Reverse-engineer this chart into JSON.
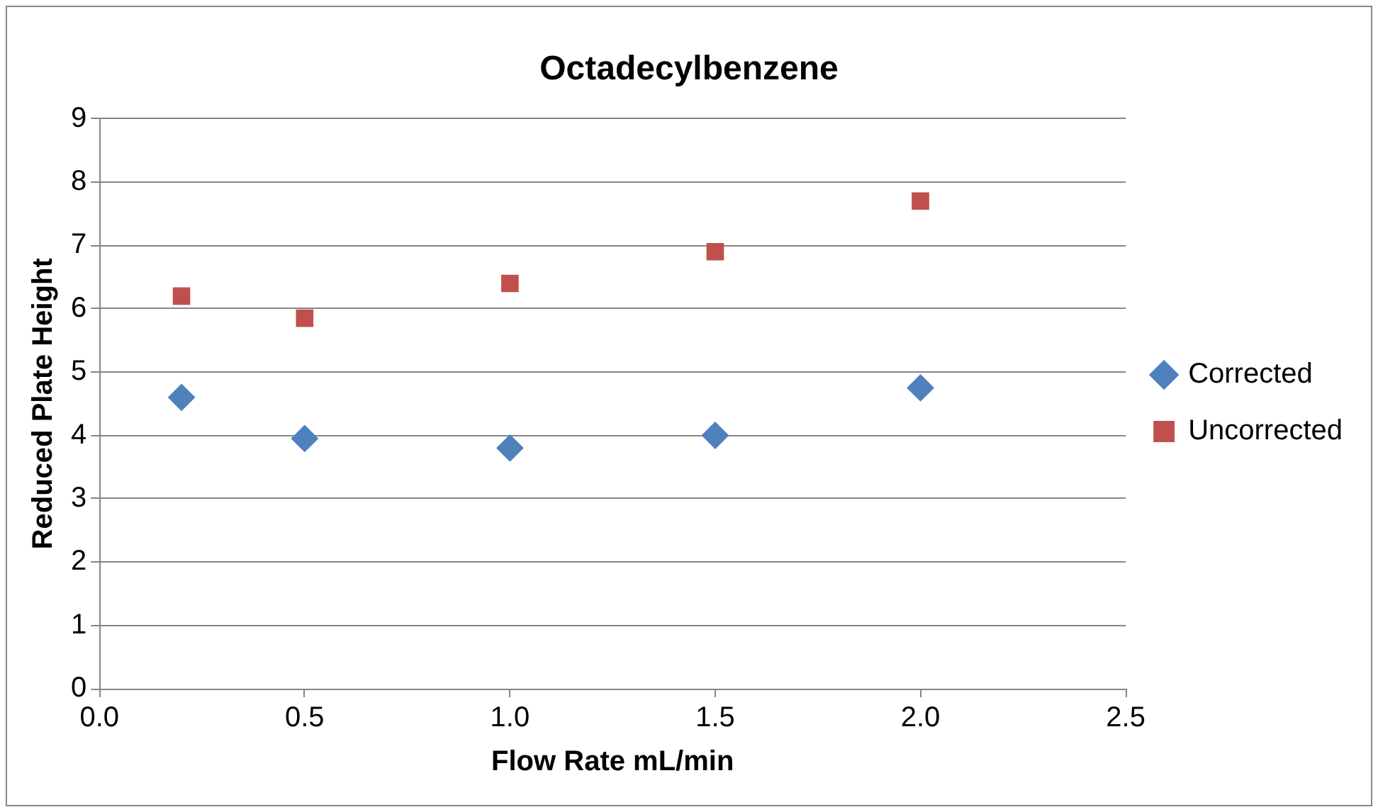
{
  "chart_data": {
    "type": "scatter",
    "title": "Octadecylbenzene",
    "xlabel": "Flow Rate mL/min",
    "ylabel": "Reduced Plate Height",
    "x": [
      0.2,
      0.5,
      1.0,
      1.5,
      2.0
    ],
    "series": [
      {
        "name": "Corrected",
        "color": "#4f81bd",
        "marker": "diamond",
        "values": [
          4.6,
          3.95,
          3.8,
          4.0,
          4.75
        ]
      },
      {
        "name": "Uncorrected",
        "color": "#c0504d",
        "marker": "square",
        "values": [
          6.2,
          5.85,
          6.4,
          6.9,
          7.7
        ]
      }
    ],
    "xlim": [
      0,
      2.5
    ],
    "xticks": [
      {
        "value": 0,
        "label": "0.0"
      },
      {
        "value": 0.5,
        "label": "0.5"
      },
      {
        "value": 1,
        "label": "1.0"
      },
      {
        "value": 1.5,
        "label": "1.5"
      },
      {
        "value": 2,
        "label": "2.0"
      },
      {
        "value": 2.5,
        "label": "2.5"
      }
    ],
    "ylim": [
      0,
      9
    ],
    "yticks": [
      0,
      1,
      2,
      3,
      4,
      5,
      6,
      7,
      8,
      9
    ],
    "grid": "y",
    "legend": "right"
  }
}
